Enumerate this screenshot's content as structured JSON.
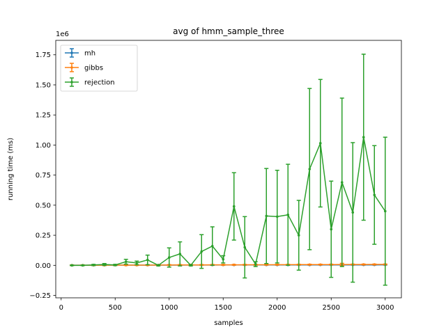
{
  "chart_data": {
    "type": "line",
    "title": "avg of hmm_sample_three",
    "xlabel": "samples",
    "ylabel": "running time (ms)",
    "y_scale_label": "1e6",
    "y_scale": 1000000,
    "xlim": [
      -50,
      3150
    ],
    "ylim": [
      -270000,
      1870000
    ],
    "xticks": [
      0,
      500,
      1000,
      1500,
      2000,
      2500,
      3000
    ],
    "xtick_labels": [
      "0",
      "500",
      "1000",
      "1500",
      "2000",
      "2500",
      "3000"
    ],
    "yticks": [
      -250000,
      0,
      250000,
      500000,
      750000,
      1000000,
      1250000,
      1500000,
      1750000
    ],
    "ytick_labels": [
      "−0.25",
      "0.00",
      "0.25",
      "0.50",
      "0.75",
      "1.00",
      "1.25",
      "1.50",
      "1.75"
    ],
    "grid": false,
    "legend_position": "upper-left",
    "x": [
      100,
      200,
      300,
      400,
      500,
      600,
      700,
      800,
      900,
      1000,
      1100,
      1200,
      1300,
      1400,
      1500,
      1600,
      1700,
      1800,
      1900,
      2000,
      2100,
      2200,
      2300,
      2400,
      2500,
      2600,
      2700,
      2800,
      2900,
      3000
    ],
    "series": [
      {
        "name": "mh",
        "color": "#1f77b4",
        "values": [
          1000,
          1000,
          1000,
          1500,
          1500,
          2000,
          2000,
          2000,
          2000,
          2000,
          2000,
          2500,
          2500,
          2500,
          3000,
          3000,
          3000,
          3000,
          3000,
          3000,
          3000,
          3000,
          3000,
          3500,
          3500,
          3500,
          3500,
          3500,
          3500,
          4000
        ],
        "errors": [
          500,
          500,
          500,
          800,
          800,
          1000,
          1000,
          1000,
          1000,
          1000,
          1000,
          1200,
          1200,
          1200,
          1500,
          1500,
          1500,
          1500,
          1500,
          1500,
          1500,
          1500,
          1500,
          1800,
          1800,
          1800,
          1800,
          1800,
          1800,
          2000
        ]
      },
      {
        "name": "gibbs",
        "color": "#ff7f0e",
        "values": [
          500,
          800,
          1000,
          1200,
          1500,
          1800,
          2000,
          2200,
          2500,
          2800,
          3000,
          3200,
          3500,
          3800,
          4000,
          4200,
          4500,
          4800,
          5000,
          5200,
          5500,
          5800,
          6000,
          6200,
          6500,
          6800,
          7000,
          7200,
          7500,
          7800
        ],
        "errors": [
          3000,
          3000,
          3000,
          3000,
          3000,
          3000,
          3000,
          3000,
          3000,
          3000,
          3000,
          3000,
          3000,
          3000,
          3000,
          3000,
          3000,
          3000,
          3000,
          3000,
          3000,
          3000,
          3000,
          3000,
          3000,
          10000,
          3000,
          3000,
          3000,
          3000
        ]
      },
      {
        "name": "rejection",
        "color": "#2ca02c",
        "values": [
          0,
          0,
          3000,
          7000,
          3000,
          30000,
          20000,
          45000,
          0,
          65000,
          95000,
          0,
          115000,
          160000,
          50000,
          490000,
          150000,
          10000,
          410000,
          405000,
          420000,
          250000,
          800000,
          1015000,
          300000,
          690000,
          440000,
          1065000,
          585000,
          450000
        ],
        "errors": [
          2000,
          2000,
          5000,
          8000,
          5000,
          20000,
          15000,
          40000,
          5000,
          80000,
          100000,
          5000,
          140000,
          160000,
          30000,
          280000,
          255000,
          20000,
          395000,
          385000,
          420000,
          290000,
          670000,
          530000,
          400000,
          700000,
          580000,
          690000,
          410000,
          615000
        ]
      }
    ]
  }
}
